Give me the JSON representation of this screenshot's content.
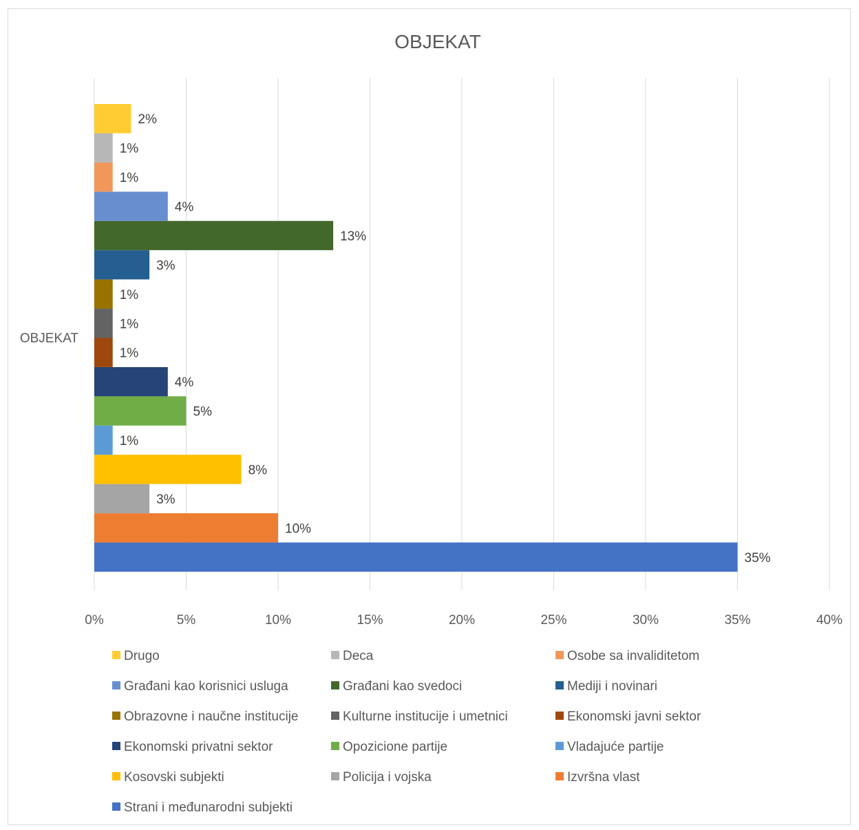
{
  "chart_data": {
    "type": "bar",
    "orientation": "horizontal",
    "title": "OBJEKAT",
    "categories": [
      "OBJEKAT"
    ],
    "xlim": [
      0,
      40
    ],
    "x_ticks": [
      "0%",
      "5%",
      "10%",
      "15%",
      "20%",
      "25%",
      "30%",
      "35%",
      "40%"
    ],
    "grid": true,
    "legend_position": "bottom",
    "series": [
      {
        "name": "Strani i međunarodni subjekti",
        "value": 35,
        "label": "35%",
        "color": "#4472C4"
      },
      {
        "name": "Izvršna vlast",
        "value": 10,
        "label": "10%",
        "color": "#ED7D31"
      },
      {
        "name": "Policija i vojska",
        "value": 3,
        "label": "3%",
        "color": "#A5A5A5"
      },
      {
        "name": "Kosovski subjekti",
        "value": 8,
        "label": "8%",
        "color": "#FFC000"
      },
      {
        "name": "Vladajuće partije",
        "value": 1,
        "label": "1%",
        "color": "#5B9BD5"
      },
      {
        "name": "Opozicione partije",
        "value": 5,
        "label": "5%",
        "color": "#70AD47"
      },
      {
        "name": "Ekonomski privatni sektor",
        "value": 4,
        "label": "4%",
        "color": "#264478"
      },
      {
        "name": "Ekonomski javni sektor",
        "value": 1,
        "label": "1%",
        "color": "#9E480E"
      },
      {
        "name": "Kulturne institucije i umetnici",
        "value": 1,
        "label": "1%",
        "color": "#636363"
      },
      {
        "name": "Obrazovne i naučne institucije",
        "value": 1,
        "label": "1%",
        "color": "#997300"
      },
      {
        "name": "Mediji i novinari",
        "value": 3,
        "label": "3%",
        "color": "#255E91"
      },
      {
        "name": "Građani kao svedoci",
        "value": 13,
        "label": "13%",
        "color": "#43682B"
      },
      {
        "name": "Građani kao korisnici usluga",
        "value": 4,
        "label": "4%",
        "color": "#698ED0"
      },
      {
        "name": "Osobe sa invaliditetom",
        "value": 1,
        "label": "1%",
        "color": "#F1975A"
      },
      {
        "name": "Deca",
        "value": 1,
        "label": "1%",
        "color": "#B7B7B7"
      },
      {
        "name": "Drugo",
        "value": 2,
        "label": "2%",
        "color": "#FFCD33"
      }
    ],
    "legend_order": [
      "Drugo",
      "Deca",
      "Osobe sa invaliditetom",
      "Građani kao korisnici usluga",
      "Građani kao svedoci",
      "Mediji i novinari",
      "Obrazovne i naučne institucije",
      "Kulturne institucije i umetnici",
      "Ekonomski javni sektor",
      "Ekonomski privatni sektor",
      "Opozicione partije",
      "Vladajuće partije",
      "Kosovski subjekti",
      "Policija i vojska",
      "Izvršna vlast",
      "Strani i međunarodni subjekti"
    ]
  }
}
